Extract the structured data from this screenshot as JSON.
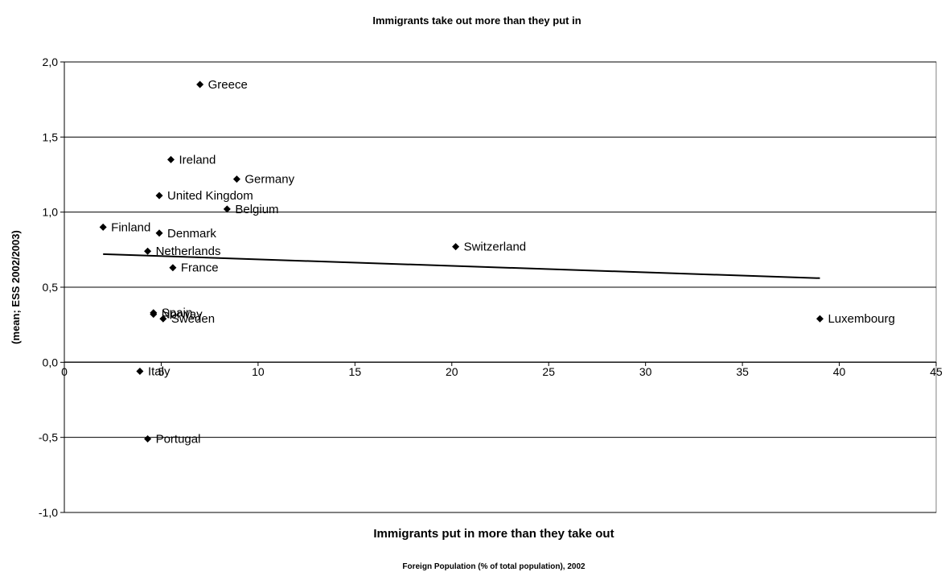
{
  "chart_data": {
    "type": "scatter",
    "title": "Immigrants take out more than they put in",
    "bottom_caption": "Immigrants put in more than they take out",
    "xlabel": "Foreign Population (% of total population), 2002",
    "ylabel": "(mean; ESS 2002/2003)",
    "xlim": [
      0,
      45
    ],
    "ylim": [
      -1.0,
      2.0
    ],
    "x_ticks": [
      "0",
      "5",
      "10",
      "15",
      "20",
      "25",
      "30",
      "35",
      "40",
      "45"
    ],
    "y_ticks": [
      "2,0",
      "1,5",
      "1,0",
      "0,5",
      "0,0",
      "-0,5",
      "-1,0"
    ],
    "grid": "horizontal",
    "marker": "diamond",
    "marker_color": "#000000",
    "points": [
      {
        "label": "Greece",
        "x": 7.0,
        "y": 1.85
      },
      {
        "label": "Ireland",
        "x": 5.5,
        "y": 1.35
      },
      {
        "label": "Germany",
        "x": 8.9,
        "y": 1.22
      },
      {
        "label": "United Kingdom",
        "x": 4.9,
        "y": 1.11
      },
      {
        "label": "Belgium",
        "x": 8.4,
        "y": 1.02
      },
      {
        "label": "Finland",
        "x": 2.0,
        "y": 0.9
      },
      {
        "label": "Denmark",
        "x": 4.9,
        "y": 0.86
      },
      {
        "label": "Netherlands",
        "x": 4.3,
        "y": 0.74
      },
      {
        "label": "Switzerland",
        "x": 20.2,
        "y": 0.77
      },
      {
        "label": "France",
        "x": 5.6,
        "y": 0.63
      },
      {
        "label": "Spain",
        "x": 4.6,
        "y": 0.33
      },
      {
        "label": "Norway",
        "x": 4.6,
        "y": 0.32
      },
      {
        "label": "Sweden",
        "x": 5.1,
        "y": 0.29
      },
      {
        "label": "Luxembourg",
        "x": 39.0,
        "y": 0.29
      },
      {
        "label": "Italy",
        "x": 3.9,
        "y": -0.06
      },
      {
        "label": "Portugal",
        "x": 4.3,
        "y": -0.51
      }
    ],
    "trendline": {
      "x": [
        2.0,
        39.0
      ],
      "y": [
        0.72,
        0.56
      ]
    }
  }
}
